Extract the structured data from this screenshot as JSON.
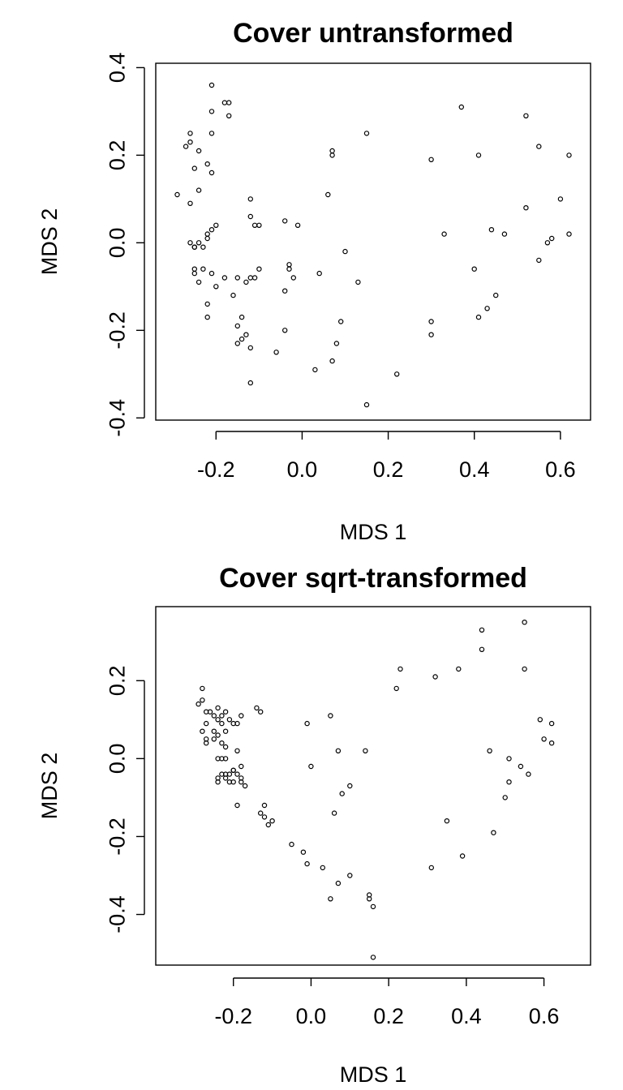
{
  "chart_data": [
    {
      "type": "scatter",
      "title": "Cover untransformed",
      "xlabel": "MDS 1",
      "ylabel": "MDS 2",
      "xlim": [
        -0.34,
        0.67
      ],
      "ylim": [
        -0.405,
        0.41
      ],
      "xticks": [
        -0.2,
        0.0,
        0.2,
        0.4,
        0.6
      ],
      "xtick_labels": [
        "-0.2",
        "0.0",
        "0.2",
        "0.4",
        "0.6"
      ],
      "yticks": [
        -0.4,
        -0.2,
        0.0,
        0.2,
        0.4
      ],
      "ytick_labels": [
        "-0.4",
        "-0.2",
        "0.0",
        "0.2",
        "0.4"
      ],
      "grid": false,
      "x": [
        -0.21,
        -0.18,
        -0.17,
        -0.21,
        -0.17,
        -0.26,
        -0.27,
        -0.21,
        -0.24,
        -0.26,
        -0.22,
        -0.21,
        -0.24,
        -0.29,
        -0.25,
        -0.2,
        -0.21,
        -0.22,
        -0.22,
        -0.26,
        -0.24,
        -0.26,
        -0.25,
        -0.23,
        -0.25,
        -0.25,
        -0.24,
        -0.23,
        -0.21,
        -0.25,
        -0.18,
        -0.15,
        -0.13,
        -0.2,
        -0.22,
        -0.22,
        -0.16,
        -0.12,
        -0.11,
        -0.1,
        -0.12,
        -0.11,
        -0.12,
        -0.1,
        -0.14,
        -0.15,
        -0.15,
        -0.13,
        -0.14,
        -0.12,
        -0.12,
        -0.04,
        -0.01,
        -0.03,
        -0.02,
        -0.03,
        -0.04,
        -0.04,
        -0.06,
        0.03,
        0.04,
        0.07,
        0.07,
        0.08,
        0.09,
        0.06,
        0.07,
        0.1,
        0.13,
        0.15,
        0.15,
        0.22,
        0.3,
        0.33,
        0.3,
        0.3,
        0.37,
        0.41,
        0.4,
        0.41,
        0.43,
        0.44,
        0.45,
        0.47,
        0.52,
        0.52,
        0.55,
        0.55,
        0.57,
        0.58,
        0.6,
        0.62,
        0.62
      ],
      "y": [
        0.36,
        0.32,
        0.32,
        0.3,
        0.29,
        0.25,
        0.22,
        0.25,
        0.21,
        0.23,
        0.18,
        0.16,
        0.12,
        0.11,
        0.17,
        0.04,
        0.03,
        0.02,
        0.01,
        0.09,
        0.0,
        0.0,
        -0.01,
        -0.01,
        -0.06,
        -0.07,
        -0.09,
        -0.06,
        -0.07,
        -0.01,
        -0.08,
        -0.08,
        -0.09,
        -0.1,
        -0.14,
        -0.17,
        -0.12,
        0.06,
        0.04,
        0.04,
        -0.08,
        -0.08,
        0.1,
        -0.06,
        -0.17,
        -0.19,
        -0.23,
        -0.21,
        -0.22,
        -0.24,
        -0.32,
        0.05,
        0.04,
        -0.05,
        -0.08,
        -0.06,
        -0.11,
        -0.2,
        -0.25,
        -0.29,
        -0.07,
        0.21,
        0.2,
        -0.23,
        -0.18,
        0.11,
        -0.27,
        -0.02,
        -0.09,
        0.25,
        -0.37,
        -0.3,
        0.19,
        0.02,
        -0.18,
        -0.21,
        0.31,
        0.2,
        -0.06,
        -0.17,
        -0.15,
        0.03,
        -0.12,
        0.02,
        0.29,
        0.08,
        0.22,
        -0.04,
        0.0,
        0.01,
        0.1,
        0.2,
        0.02
      ]
    },
    {
      "type": "scatter",
      "title": "Cover sqrt-transformed",
      "xlabel": "MDS 1",
      "ylabel": "MDS 2",
      "xlim": [
        -0.4,
        0.72
      ],
      "ylim": [
        -0.53,
        0.39
      ],
      "xticks": [
        -0.2,
        0.0,
        0.2,
        0.4,
        0.6
      ],
      "xtick_labels": [
        "-0.2",
        "0.0",
        "0.2",
        "0.4",
        "0.6"
      ],
      "yticks": [
        -0.4,
        -0.2,
        0.0,
        0.2
      ],
      "ytick_labels": [
        "-0.4",
        "-0.2",
        "0.0",
        "0.2"
      ],
      "grid": false,
      "x": [
        -0.28,
        -0.28,
        -0.29,
        -0.27,
        -0.26,
        -0.25,
        -0.24,
        -0.24,
        -0.23,
        -0.22,
        -0.23,
        -0.21,
        -0.2,
        -0.19,
        -0.22,
        -0.23,
        -0.24,
        -0.25,
        -0.27,
        -0.28,
        -0.27,
        -0.27,
        -0.25,
        -0.24,
        -0.23,
        -0.22,
        -0.21,
        -0.2,
        -0.19,
        -0.18,
        -0.18,
        -0.19,
        -0.2,
        -0.21,
        -0.22,
        -0.23,
        -0.24,
        -0.24,
        -0.22,
        -0.2,
        -0.19,
        -0.18,
        -0.17,
        -0.18,
        -0.22,
        -0.14,
        -0.13,
        -0.13,
        -0.12,
        -0.12,
        -0.11,
        -0.1,
        -0.05,
        -0.02,
        -0.01,
        0.03,
        -0.01,
        0.0,
        0.05,
        0.05,
        0.06,
        0.07,
        0.07,
        0.08,
        0.1,
        0.1,
        0.14,
        0.15,
        0.16,
        0.16,
        0.15,
        0.22,
        0.23,
        0.31,
        0.32,
        0.35,
        0.38,
        0.39,
        0.44,
        0.44,
        0.46,
        0.47,
        0.5,
        0.51,
        0.51,
        0.54,
        0.55,
        0.55,
        0.56,
        0.59,
        0.6,
        0.62,
        0.62
      ],
      "y": [
        0.18,
        0.15,
        0.14,
        0.12,
        0.12,
        0.11,
        0.13,
        0.1,
        0.11,
        0.12,
        0.09,
        0.1,
        0.09,
        0.09,
        0.03,
        0.04,
        0.06,
        0.07,
        0.09,
        0.07,
        0.05,
        0.04,
        0.05,
        0.0,
        0.0,
        0.0,
        -0.04,
        -0.03,
        -0.04,
        -0.05,
        0.11,
        0.02,
        -0.03,
        -0.06,
        -0.05,
        -0.04,
        -0.05,
        -0.06,
        -0.04,
        -0.06,
        -0.12,
        -0.02,
        -0.07,
        -0.06,
        0.07,
        0.13,
        0.12,
        -0.14,
        -0.12,
        -0.15,
        -0.17,
        -0.16,
        -0.22,
        -0.24,
        -0.27,
        -0.28,
        0.09,
        -0.02,
        0.11,
        -0.36,
        -0.14,
        -0.32,
        0.02,
        -0.09,
        -0.3,
        -0.07,
        0.02,
        -0.36,
        -0.38,
        -0.51,
        -0.35,
        0.18,
        0.23,
        -0.28,
        0.21,
        -0.16,
        0.23,
        -0.25,
        0.33,
        0.28,
        0.02,
        -0.19,
        -0.1,
        0.0,
        -0.06,
        -0.02,
        0.35,
        0.23,
        -0.04,
        0.1,
        0.05,
        0.09,
        0.04
      ]
    }
  ]
}
